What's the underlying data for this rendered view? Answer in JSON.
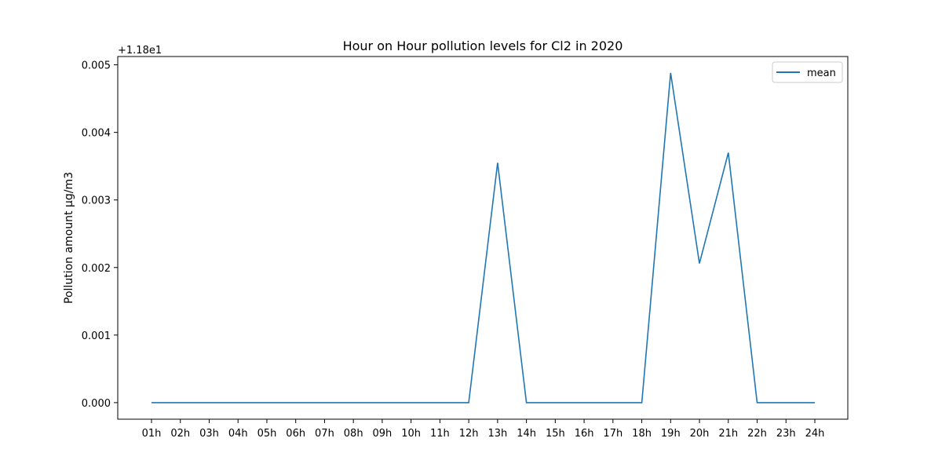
{
  "chart_data": {
    "type": "line",
    "title": "Hour on Hour pollution levels for Cl2 in 2020",
    "xlabel": "",
    "ylabel": "Pollution amount µg/m3",
    "offset_text": "+1.18e1",
    "y_offset": 11.8,
    "categories": [
      "01h",
      "02h",
      "03h",
      "04h",
      "05h",
      "06h",
      "07h",
      "08h",
      "09h",
      "10h",
      "11h",
      "12h",
      "13h",
      "14h",
      "15h",
      "16h",
      "17h",
      "18h",
      "19h",
      "20h",
      "21h",
      "22h",
      "23h",
      "24h"
    ],
    "y_ticks": [
      0.0,
      0.001,
      0.002,
      0.003,
      0.004,
      0.005
    ],
    "y_tick_labels": [
      "0.000",
      "0.001",
      "0.002",
      "0.003",
      "0.004",
      "0.005"
    ],
    "ylim": [
      -0.000245,
      0.005123
    ],
    "grid": false,
    "legend_position": "top-right",
    "series": [
      {
        "name": "mean",
        "color": "#1f77b4",
        "values": [
          11.8,
          11.8,
          11.8,
          11.8,
          11.8,
          11.8,
          11.8,
          11.8,
          11.8,
          11.8,
          11.8,
          11.8,
          11.80355,
          11.8,
          11.8,
          11.8,
          11.8,
          11.8,
          11.80488,
          11.80206,
          11.8037,
          11.8,
          11.8,
          11.8
        ]
      }
    ]
  }
}
